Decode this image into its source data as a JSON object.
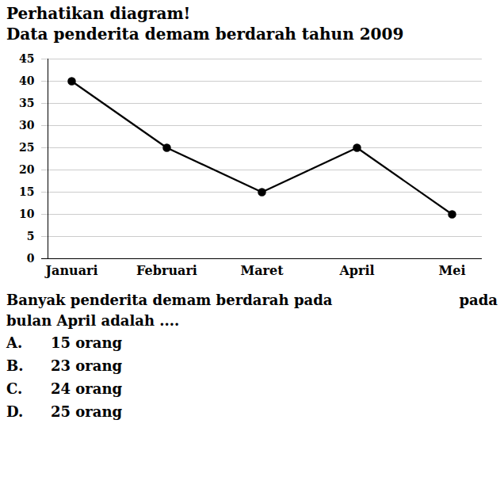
{
  "chart_data": {
    "type": "line",
    "title": "Perhatikan diagram!",
    "subtitle": "Data penderita demam berdarah tahun 2009",
    "categories": [
      "Januari",
      "Februari",
      "Maret",
      "April",
      "Mei"
    ],
    "values": [
      40,
      25,
      15,
      25,
      10
    ],
    "color": "#000000",
    "marker": "circle",
    "ylim": [
      0,
      45
    ],
    "yticks": [
      0,
      5,
      10,
      15,
      20,
      25,
      30,
      35,
      40,
      45
    ],
    "grid": true,
    "question": [
      [
        "Banyak penderita demam berdarah pada",
        "pada"
      ],
      [
        "bulan April adalah ...."
      ]
    ],
    "choices": [
      [
        "A.",
        "15 orang"
      ],
      [
        "B.",
        "23 orang"
      ],
      [
        "C.",
        "24 orang"
      ],
      [
        "D.",
        "25 orang"
      ]
    ]
  }
}
